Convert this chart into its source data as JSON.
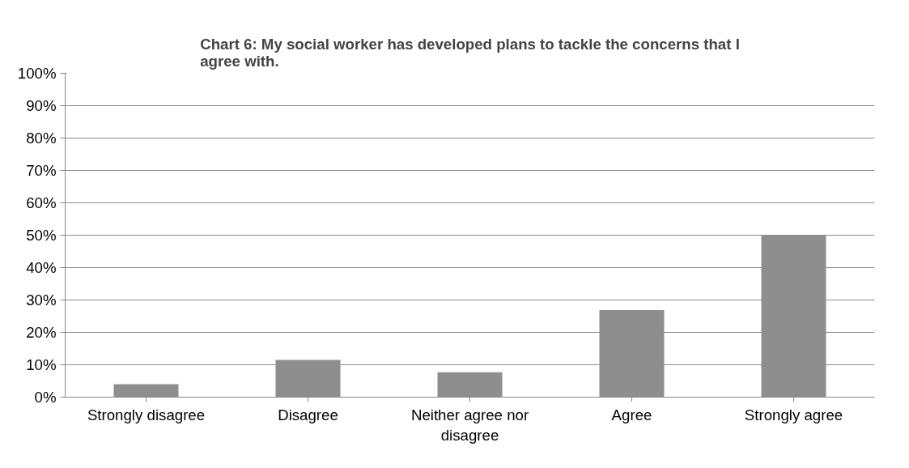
{
  "chart_data": {
    "type": "bar",
    "title": "Chart 6: My social worker has developed plans to tackle the concerns that I agree with.",
    "categories": [
      "Strongly disagree",
      "Disagree",
      "Neither agree nor disagree",
      "Agree",
      "Strongly agree"
    ],
    "values": [
      4,
      11.5,
      7.7,
      26.9,
      50
    ],
    "color": "#8e8e8e",
    "ylim": [
      0,
      100
    ],
    "yticks": [
      {
        "value": 0,
        "label": "0%"
      },
      {
        "value": 10,
        "label": "10%"
      },
      {
        "value": 20,
        "label": "20%"
      },
      {
        "value": 30,
        "label": "30%"
      },
      {
        "value": 40,
        "label": "40%"
      },
      {
        "value": 50,
        "label": "50%"
      },
      {
        "value": 60,
        "label": "60%"
      },
      {
        "value": 70,
        "label": "70%"
      },
      {
        "value": 80,
        "label": "80%"
      },
      {
        "value": 90,
        "label": "90%"
      },
      {
        "value": 100,
        "label": "100%"
      }
    ],
    "grid": "y"
  }
}
